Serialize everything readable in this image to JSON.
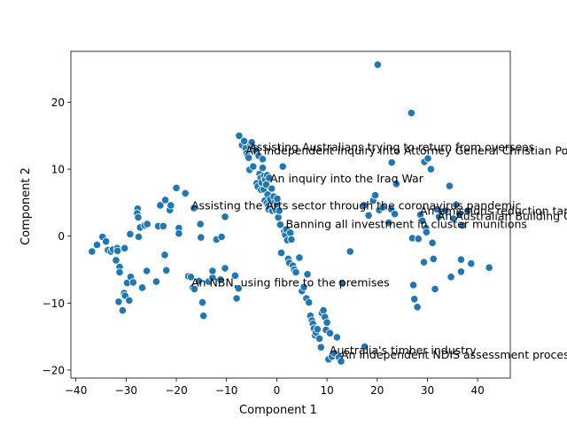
{
  "chart_data": {
    "type": "scatter",
    "title": "",
    "xlabel": "Component 1",
    "ylabel": "Component 2",
    "xlim": [
      -41,
      46.5
    ],
    "ylim": [
      -21.2,
      27.6
    ],
    "xticks": [
      -40,
      -30,
      -20,
      -10,
      0,
      10,
      20,
      30,
      40
    ],
    "yticks": [
      -20,
      -10,
      0,
      10,
      20
    ],
    "grid": false,
    "legend": "none",
    "marker_color": "#1f77b4",
    "marker_edge": "#ffffff",
    "annotations": [
      {
        "text": "Assisting Australians trying to return from overseas",
        "x": -5.5,
        "y": 12.7
      },
      {
        "text": "An independent inquiry into Attorney General Christian Porter",
        "x": -6.2,
        "y": 12.2
      },
      {
        "text": "An inquiry into the Iraq War",
        "x": -1.3,
        "y": 8.0
      },
      {
        "text": "Assisting the Arts sector through the coronavirus pandemic",
        "x": -17.0,
        "y": 4.0
      },
      {
        "text": "An emissions reduction target",
        "x": 28.5,
        "y": 3.2
      },
      {
        "text": "An Australian Building Codes Board",
        "x": 32.0,
        "y": 2.4
      },
      {
        "text": "Banning all investment in cluster munitions",
        "x": 1.8,
        "y": 1.2
      },
      {
        "text": "An NBN, using fibre to the premises",
        "x": -17.0,
        "y": -7.5
      },
      {
        "text": "Australia's timber industry",
        "x": 10.5,
        "y": -17.6
      },
      {
        "text": "An independent NDIS assessment process",
        "x": 12.8,
        "y": -18.3
      }
    ],
    "points": [
      [
        -36.8,
        -2.3
      ],
      [
        -35.8,
        -1.3
      ],
      [
        -34.7,
        -0.1
      ],
      [
        -34.0,
        -0.8
      ],
      [
        -33.6,
        -2.1
      ],
      [
        -33.0,
        -2.3
      ],
      [
        -32.6,
        -2.0
      ],
      [
        -32.0,
        -3.6
      ],
      [
        -31.8,
        -1.8
      ],
      [
        -31.7,
        -2.2
      ],
      [
        -31.3,
        -4.6
      ],
      [
        -31.3,
        -5.4
      ],
      [
        -31.5,
        -9.8
      ],
      [
        -30.7,
        -11.1
      ],
      [
        -30.4,
        -8.5
      ],
      [
        -30.2,
        -8.9
      ],
      [
        -30.3,
        -1.8
      ],
      [
        -29.8,
        -7.0
      ],
      [
        -29.4,
        -9.6
      ],
      [
        -29.2,
        0.3
      ],
      [
        -29.1,
        -6.1
      ],
      [
        -28.6,
        -6.9
      ],
      [
        -27.7,
        4.1
      ],
      [
        -27.8,
        3.4
      ],
      [
        -27.6,
        2.8
      ],
      [
        -27.5,
        -0.1
      ],
      [
        -27.2,
        1.3
      ],
      [
        -26.8,
        -7.7
      ],
      [
        -26.3,
        1.6
      ],
      [
        -25.9,
        -5.2
      ],
      [
        -25.8,
        1.8
      ],
      [
        -24.0,
        -6.8
      ],
      [
        -23.6,
        1.5
      ],
      [
        -23.2,
        4.6
      ],
      [
        -22.6,
        1.5
      ],
      [
        -22.2,
        5.4
      ],
      [
        -22.3,
        -2.8
      ],
      [
        -22.0,
        -5.1
      ],
      [
        -21.3,
        3.9
      ],
      [
        -21.1,
        4.6
      ],
      [
        -20.0,
        7.2
      ],
      [
        -19.5,
        1.2
      ],
      [
        -19.5,
        0.4
      ],
      [
        -18.2,
        6.4
      ],
      [
        -17.6,
        -6.0
      ],
      [
        -17.1,
        -6.1
      ],
      [
        -16.7,
        -7.7
      ],
      [
        -16.5,
        4.2
      ],
      [
        -16.4,
        -7.9
      ],
      [
        -15.5,
        -6.7
      ],
      [
        -15.2,
        1.8
      ],
      [
        -15.1,
        -0.2
      ],
      [
        -14.8,
        -9.9
      ],
      [
        -14.6,
        -11.9
      ],
      [
        -13.6,
        -6.8
      ],
      [
        -12.8,
        -6.2
      ],
      [
        -12.8,
        -5.2
      ],
      [
        -12.0,
        -0.5
      ],
      [
        -11.2,
        -6.5
      ],
      [
        -11.0,
        -0.1
      ],
      [
        -10.3,
        2.9
      ],
      [
        -10.3,
        -4.8
      ],
      [
        -8.3,
        -5.9
      ],
      [
        -8.0,
        -9.3
      ],
      [
        -7.6,
        -7.8
      ],
      [
        -7.5,
        15.0
      ],
      [
        -6.9,
        13.6
      ],
      [
        -6.5,
        14.2
      ],
      [
        -6.2,
        13.1
      ],
      [
        -6.0,
        12.4
      ],
      [
        -5.8,
        12.0
      ],
      [
        -5.6,
        11.7
      ],
      [
        -5.4,
        9.9
      ],
      [
        -5.2,
        13.6
      ],
      [
        -5.0,
        14.0
      ],
      [
        -4.7,
        10.4
      ],
      [
        -4.5,
        13.2
      ],
      [
        -4.2,
        12.8
      ],
      [
        -4.0,
        7.9
      ],
      [
        -3.8,
        7.4
      ],
      [
        -3.6,
        12.0
      ],
      [
        -3.4,
        9.3
      ],
      [
        -3.2,
        8.7
      ],
      [
        -3.1,
        6.9
      ],
      [
        -3.0,
        8.0
      ],
      [
        -2.8,
        10.2
      ],
      [
        -2.8,
        11.5
      ],
      [
        -2.6,
        7.0
      ],
      [
        -2.5,
        9.0
      ],
      [
        -2.4,
        5.3
      ],
      [
        -2.3,
        8.4
      ],
      [
        -2.1,
        7.7
      ],
      [
        -2.0,
        4.9
      ],
      [
        -1.9,
        9.1
      ],
      [
        -1.8,
        6.2
      ],
      [
        -1.7,
        4.5
      ],
      [
        -1.6,
        4.0
      ],
      [
        -1.5,
        8.7
      ],
      [
        -1.3,
        5.5
      ],
      [
        -1.2,
        4.2
      ],
      [
        -1.0,
        7.1
      ],
      [
        -0.9,
        3.8
      ],
      [
        -0.7,
        4.6
      ],
      [
        -0.6,
        5.9
      ],
      [
        -0.5,
        4.9
      ],
      [
        -0.3,
        4.3
      ],
      [
        -0.2,
        3.9
      ],
      [
        0.0,
        4.7
      ],
      [
        0.1,
        5.6
      ],
      [
        0.3,
        2.8
      ],
      [
        0.5,
        3.8
      ],
      [
        0.7,
        1.7
      ],
      [
        0.9,
        -2.5
      ],
      [
        1.2,
        10.4
      ],
      [
        1.5,
        0.7
      ],
      [
        1.7,
        0.2
      ],
      [
        1.9,
        1.0
      ],
      [
        2.1,
        -0.6
      ],
      [
        2.3,
        -3.4
      ],
      [
        2.5,
        -4.0
      ],
      [
        2.7,
        0.5
      ],
      [
        2.9,
        -0.5
      ],
      [
        3.2,
        -4.4
      ],
      [
        3.5,
        -5.0
      ],
      [
        3.8,
        -5.4
      ],
      [
        4.5,
        -3.2
      ],
      [
        5.0,
        -8.2
      ],
      [
        5.4,
        -7.6
      ],
      [
        5.9,
        -9.3
      ],
      [
        6.1,
        -5.7
      ],
      [
        6.4,
        -9.9
      ],
      [
        6.7,
        -11.9
      ],
      [
        7.0,
        -12.6
      ],
      [
        7.2,
        -13.1
      ],
      [
        7.4,
        -13.8
      ],
      [
        7.6,
        -14.8
      ],
      [
        7.8,
        -14.4
      ],
      [
        8.1,
        -13.9
      ],
      [
        8.5,
        -15.3
      ],
      [
        8.8,
        -16.6
      ],
      [
        9.0,
        -11.5
      ],
      [
        9.3,
        -11.1
      ],
      [
        9.6,
        -12.1
      ],
      [
        9.8,
        -14.0
      ],
      [
        10.0,
        -12.9
      ],
      [
        10.3,
        -18.4
      ],
      [
        10.6,
        -14.5
      ],
      [
        11.0,
        -18.0
      ],
      [
        11.5,
        -17.5
      ],
      [
        12.0,
        -15.1
      ],
      [
        12.4,
        -18.1
      ],
      [
        12.8,
        -18.7
      ],
      [
        13.0,
        -7.0
      ],
      [
        14.6,
        -2.3
      ],
      [
        17.5,
        -16.5
      ],
      [
        17.4,
        4.6
      ],
      [
        18.3,
        3.1
      ],
      [
        19.2,
        5.3
      ],
      [
        19.6,
        6.1
      ],
      [
        20.1,
        25.6
      ],
      [
        20.4,
        3.9
      ],
      [
        21.1,
        4.3
      ],
      [
        22.3,
        2.0
      ],
      [
        22.8,
        4.0
      ],
      [
        22.9,
        11.0
      ],
      [
        23.5,
        3.3
      ],
      [
        23.8,
        7.8
      ],
      [
        26.8,
        18.4
      ],
      [
        27.0,
        -0.3
      ],
      [
        27.2,
        -7.3
      ],
      [
        27.4,
        -9.4
      ],
      [
        28.0,
        -10.6
      ],
      [
        28.2,
        -0.4
      ],
      [
        28.6,
        3.2
      ],
      [
        29.0,
        2.3
      ],
      [
        29.3,
        -3.9
      ],
      [
        29.4,
        11.1
      ],
      [
        29.7,
        1.2
      ],
      [
        29.8,
        0.6
      ],
      [
        30.1,
        11.6
      ],
      [
        30.7,
        10.0
      ],
      [
        31.0,
        -1.0
      ],
      [
        31.2,
        -3.4
      ],
      [
        31.5,
        -7.9
      ],
      [
        31.9,
        4.0
      ],
      [
        32.3,
        2.9
      ],
      [
        33.0,
        3.6
      ],
      [
        33.6,
        3.8
      ],
      [
        34.4,
        7.5
      ],
      [
        34.7,
        -6.1
      ],
      [
        35.2,
        2.6
      ],
      [
        35.7,
        4.7
      ],
      [
        36.4,
        3.3
      ],
      [
        36.7,
        -3.5
      ],
      [
        36.7,
        -5.3
      ],
      [
        37.0,
        1.6
      ],
      [
        38.0,
        3.8
      ],
      [
        38.7,
        -4.1
      ],
      [
        42.3,
        -4.7
      ]
    ]
  }
}
